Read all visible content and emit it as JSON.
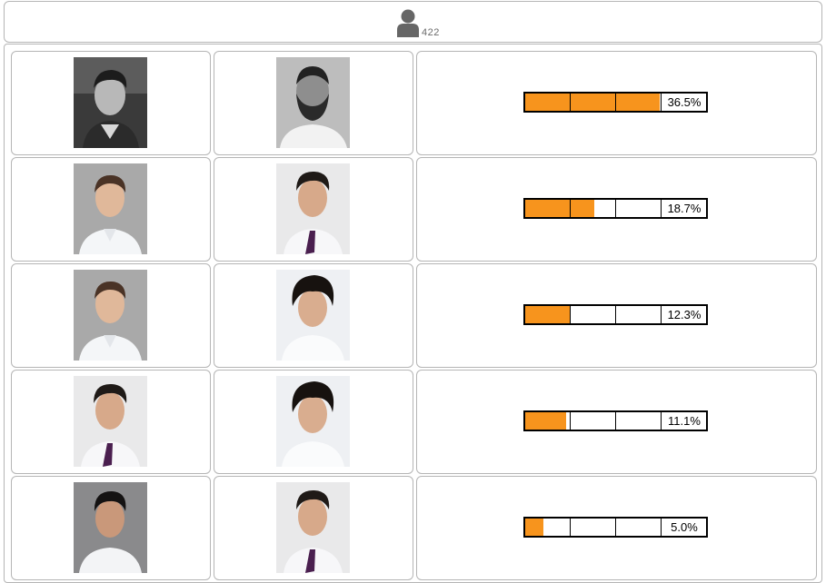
{
  "header": {
    "user_icon": "user-icon",
    "voter_count": "422"
  },
  "rows": [
    {
      "left_photo": "bw-man-jacket-photo",
      "right_photo": "bw-bearded-man-photo",
      "percent": 36.5,
      "percent_label": "36.5%"
    },
    {
      "left_photo": "man-white-shirt-photo",
      "right_photo": "man-purple-tie-photo",
      "percent": 18.7,
      "percent_label": "18.7%"
    },
    {
      "left_photo": "man-white-shirt-photo",
      "right_photo": "man-wavy-hair-photo",
      "percent": 12.3,
      "percent_label": "12.3%"
    },
    {
      "left_photo": "man-purple-tie-photo",
      "right_photo": "man-wavy-hair-photo",
      "percent": 11.1,
      "percent_label": "11.1%"
    },
    {
      "left_photo": "man-grey-background-photo",
      "right_photo": "man-purple-tie-photo",
      "percent": 5.0,
      "percent_label": "5.0%"
    }
  ],
  "colors": {
    "bar_fill": "#f7941d",
    "border": "#b5b5b5"
  }
}
